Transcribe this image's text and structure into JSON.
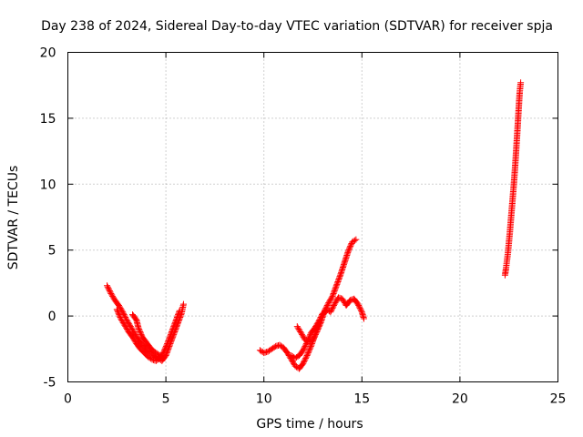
{
  "chart_data": {
    "type": "scatter",
    "title": "Day 238 of 2024, Sidereal Day-to-day VTEC variation (SDTVAR) for receiver spja",
    "xlabel": "GPS time / hours",
    "ylabel": "SDTVAR / TECUs",
    "xlim": [
      0,
      25
    ],
    "ylim": [
      -5,
      20
    ],
    "xticks": [
      0,
      5,
      10,
      15,
      20,
      25
    ],
    "yticks": [
      -5,
      0,
      5,
      10,
      15,
      20
    ],
    "grid": true,
    "marker": "plus",
    "color": "#ff0000",
    "segments": [
      [
        [
          2.0,
          2.3
        ],
        [
          2.2,
          1.7
        ],
        [
          2.4,
          1.2
        ],
        [
          2.6,
          0.8
        ],
        [
          2.8,
          0.3
        ],
        [
          3.0,
          -0.3
        ],
        [
          3.2,
          -0.8
        ],
        [
          3.4,
          -1.3
        ],
        [
          3.6,
          -1.8
        ],
        [
          3.8,
          -2.2
        ],
        [
          4.0,
          -2.5
        ],
        [
          4.2,
          -2.8
        ],
        [
          4.4,
          -3.0
        ],
        [
          4.6,
          -3.2
        ],
        [
          4.8,
          -3.4
        ],
        [
          5.0,
          -3.0
        ],
        [
          5.2,
          -2.2
        ],
        [
          5.4,
          -1.4
        ],
        [
          5.6,
          -0.6
        ],
        [
          5.8,
          0.2
        ],
        [
          5.9,
          0.9
        ]
      ],
      [
        [
          2.5,
          0.5
        ],
        [
          2.7,
          -0.2
        ],
        [
          2.9,
          -0.7
        ],
        [
          3.1,
          -1.2
        ],
        [
          3.3,
          -1.6
        ],
        [
          3.5,
          -2.1
        ],
        [
          3.7,
          -2.5
        ],
        [
          3.9,
          -2.8
        ],
        [
          4.1,
          -3.1
        ],
        [
          4.3,
          -3.3
        ],
        [
          4.5,
          -3.4
        ],
        [
          4.7,
          -3.2
        ],
        [
          4.9,
          -2.7
        ],
        [
          5.1,
          -2.0
        ],
        [
          5.3,
          -1.2
        ],
        [
          5.5,
          -0.4
        ],
        [
          5.7,
          0.4
        ]
      ],
      [
        [
          3.3,
          0.1
        ],
        [
          3.5,
          -0.3
        ],
        [
          3.6,
          -0.9
        ],
        [
          3.8,
          -1.6
        ],
        [
          4.0,
          -2.0
        ],
        [
          4.2,
          -2.4
        ],
        [
          4.4,
          -2.7
        ],
        [
          4.6,
          -2.9
        ],
        [
          4.8,
          -3.1
        ]
      ],
      [
        [
          9.8,
          -2.6
        ],
        [
          10.0,
          -2.8
        ],
        [
          10.2,
          -2.7
        ],
        [
          10.4,
          -2.5
        ],
        [
          10.6,
          -2.3
        ],
        [
          10.8,
          -2.2
        ],
        [
          11.0,
          -2.4
        ],
        [
          11.2,
          -2.8
        ],
        [
          11.4,
          -3.3
        ],
        [
          11.6,
          -3.8
        ],
        [
          11.8,
          -4.0
        ],
        [
          12.0,
          -3.6
        ],
        [
          12.2,
          -3.0
        ],
        [
          12.4,
          -2.3
        ],
        [
          12.6,
          -1.5
        ],
        [
          12.8,
          -0.6
        ],
        [
          13.0,
          0.1
        ],
        [
          13.2,
          0.5
        ],
        [
          13.4,
          0.3
        ],
        [
          13.6,
          0.9
        ],
        [
          13.8,
          1.4
        ],
        [
          14.0,
          1.3
        ],
        [
          14.2,
          0.8
        ],
        [
          14.4,
          1.2
        ],
        [
          14.6,
          1.3
        ],
        [
          14.8,
          0.9
        ],
        [
          15.0,
          0.3
        ],
        [
          15.1,
          -0.2
        ]
      ],
      [
        [
          11.7,
          -0.8
        ],
        [
          11.9,
          -1.3
        ],
        [
          12.1,
          -1.8
        ],
        [
          12.3,
          -2.0
        ],
        [
          12.5,
          -1.8
        ],
        [
          12.7,
          -1.2
        ],
        [
          12.9,
          -0.5
        ],
        [
          13.1,
          0.4
        ],
        [
          13.3,
          1.0
        ],
        [
          13.5,
          1.5
        ],
        [
          13.7,
          2.3
        ],
        [
          13.9,
          3.1
        ],
        [
          14.1,
          4.0
        ],
        [
          14.3,
          4.9
        ],
        [
          14.5,
          5.6
        ],
        [
          14.7,
          5.8
        ]
      ],
      [
        [
          11.4,
          -3.0
        ],
        [
          11.6,
          -3.2
        ],
        [
          11.8,
          -3.0
        ],
        [
          12.0,
          -2.6
        ],
        [
          12.2,
          -2.0
        ],
        [
          12.4,
          -1.3
        ],
        [
          12.6,
          -0.9
        ],
        [
          12.8,
          -0.4
        ],
        [
          13.0,
          0.2
        ]
      ],
      [
        [
          22.3,
          3.1
        ],
        [
          22.35,
          3.6
        ],
        [
          22.4,
          4.2
        ],
        [
          22.45,
          4.8
        ],
        [
          22.5,
          5.6
        ],
        [
          22.55,
          6.4
        ],
        [
          22.6,
          7.3
        ],
        [
          22.65,
          8.2
        ],
        [
          22.7,
          9.1
        ],
        [
          22.75,
          10.0
        ],
        [
          22.8,
          11.0
        ],
        [
          22.85,
          12.1
        ],
        [
          22.9,
          13.3
        ],
        [
          22.95,
          14.5
        ],
        [
          23.0,
          15.8
        ],
        [
          23.05,
          17.0
        ],
        [
          23.1,
          17.7
        ]
      ]
    ]
  }
}
